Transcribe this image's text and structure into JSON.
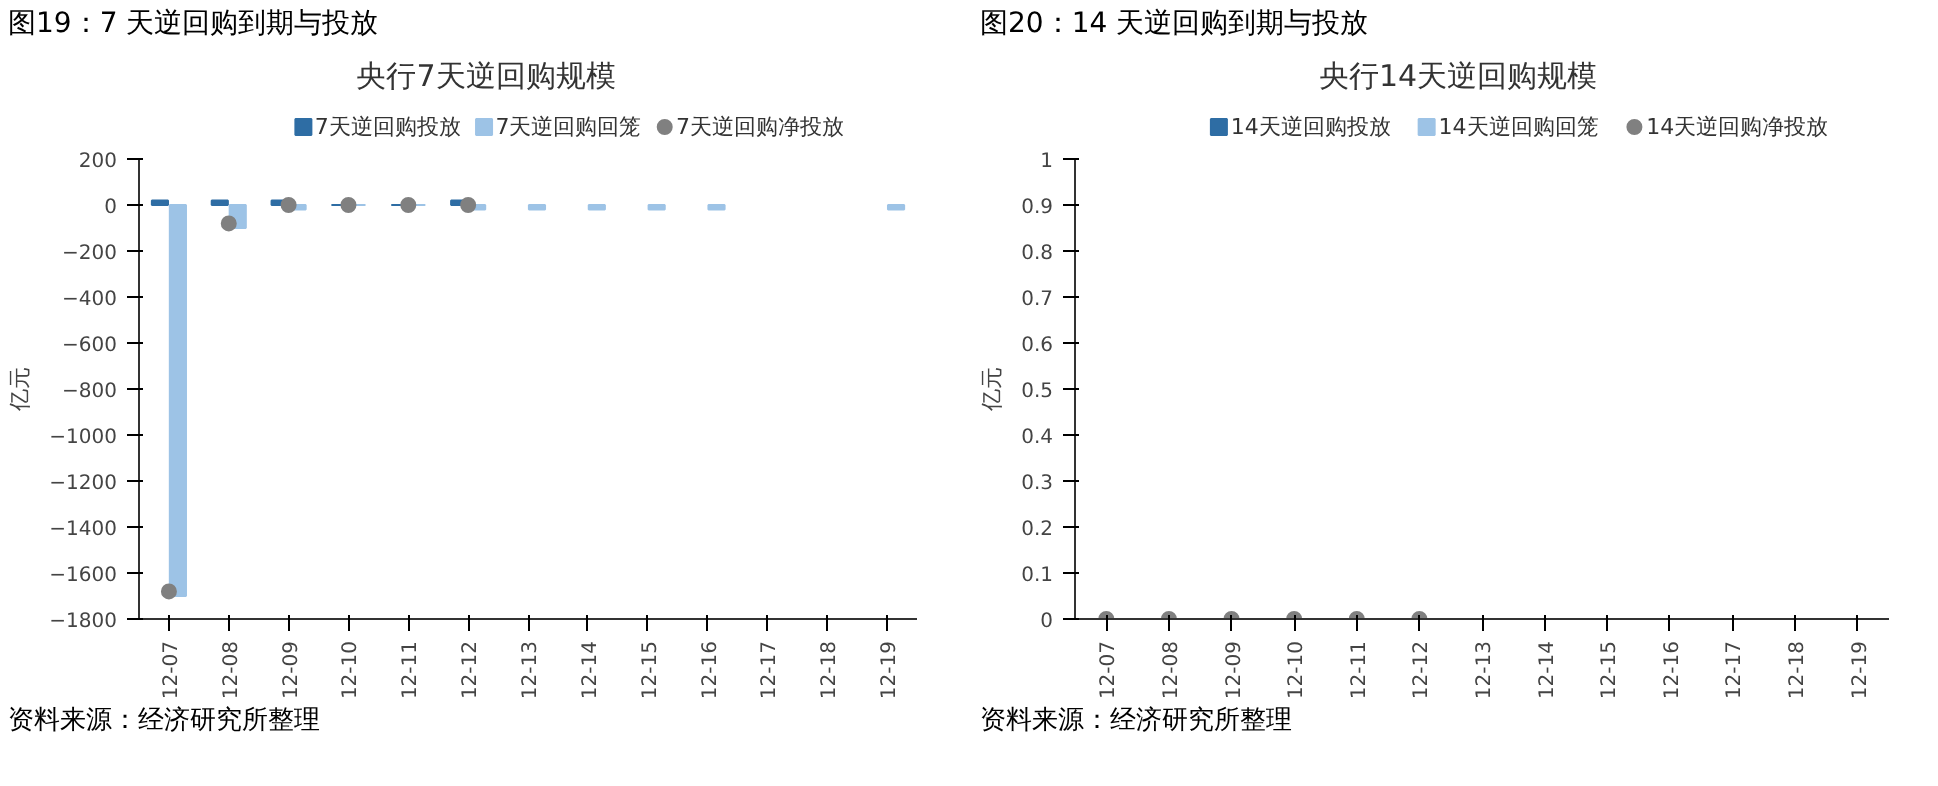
{
  "chart_data": [
    {
      "type": "bar",
      "title": "图19：7 天逆回购到期与投放",
      "subtitle": "央行7天逆回购规模",
      "ylabel": "亿元",
      "annotations": [
        "资料来源：经济研究所整理"
      ],
      "categories": [
        "12-07",
        "12-08",
        "12-09",
        "12-10",
        "12-11",
        "12-12",
        "12-13",
        "12-14",
        "12-15",
        "12-16",
        "12-17",
        "12-18",
        "12-19"
      ],
      "series": [
        {
          "name": "7天逆回购投放",
          "color": "#2e6da4",
          "values": [
            20,
            20,
            20,
            0,
            0,
            20,
            null,
            null,
            null,
            null,
            null,
            null,
            null
          ]
        },
        {
          "name": "7天逆回购回笼",
          "color": "#9dc3e6",
          "values": [
            -1700,
            -100,
            -20,
            0,
            0,
            -20,
            -20,
            -20,
            -20,
            -20,
            null,
            null,
            -20
          ]
        },
        {
          "name": "7天逆回购净投放",
          "type": "scatter",
          "color": "#808080",
          "values": [
            -1680,
            -80,
            0,
            0,
            0,
            0,
            null,
            null,
            null,
            null,
            null,
            null,
            null
          ]
        }
      ],
      "ylim": [
        -1800,
        200
      ],
      "yticks": [
        -1800,
        -1600,
        -1400,
        -1200,
        -1000,
        -800,
        -600,
        -400,
        -200,
        0,
        200
      ],
      "legend": "top",
      "marker": "circle"
    },
    {
      "type": "bar",
      "title": "图20：14 天逆回购到期与投放",
      "subtitle": "央行14天逆回购规模",
      "ylabel": "亿元",
      "annotations": [
        "资料来源：经济研究所整理"
      ],
      "categories": [
        "12-07",
        "12-08",
        "12-09",
        "12-10",
        "12-11",
        "12-12",
        "12-13",
        "12-14",
        "12-15",
        "12-16",
        "12-17",
        "12-18",
        "12-19"
      ],
      "series": [
        {
          "name": "14天逆回购投放",
          "color": "#2e6da4",
          "values": [
            0,
            0,
            0,
            0,
            0,
            0,
            null,
            null,
            null,
            null,
            null,
            null,
            null
          ]
        },
        {
          "name": "14天逆回购回笼",
          "color": "#9dc3e6",
          "values": [
            0,
            0,
            0,
            0,
            0,
            0,
            null,
            null,
            null,
            null,
            null,
            null,
            null
          ]
        },
        {
          "name": "14天逆回购净投放",
          "type": "scatter",
          "color": "#808080",
          "values": [
            0,
            0,
            0,
            0,
            0,
            0,
            null,
            null,
            null,
            null,
            null,
            null,
            null
          ]
        }
      ],
      "ylim": [
        0,
        1
      ],
      "yticks": [
        0,
        0.1,
        0.2,
        0.3,
        0.4,
        0.5,
        0.6,
        0.7,
        0.8,
        0.9,
        1
      ],
      "legend": "top",
      "marker": "circle"
    }
  ]
}
